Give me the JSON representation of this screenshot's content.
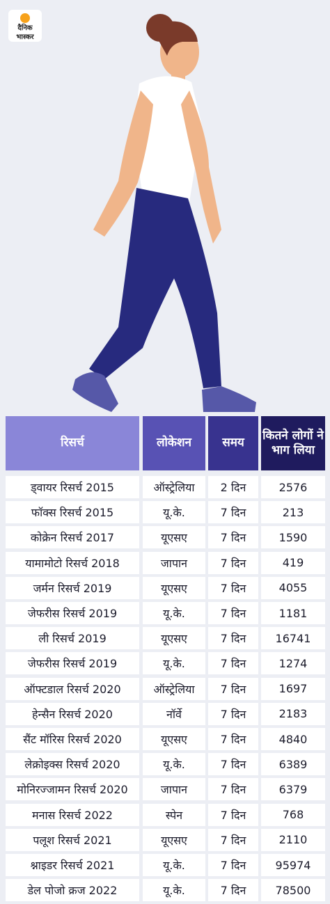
{
  "logo": {
    "line1": "दैनिक",
    "line2": "भास्कर"
  },
  "table": {
    "headers": [
      "रिसर्च",
      "लोकेशन",
      "समय",
      "कितने लोगों ने भाग लिया"
    ],
    "rows": [
      [
        "ड्वायर रिसर्च 2015",
        "ऑस्ट्रेलिया",
        "2 दिन",
        "2576"
      ],
      [
        "फॉक्स रिसर्च  2015",
        "यू.के.",
        "7 दिन",
        "213"
      ],
      [
        "कोक्रेन रिसर्च  2017",
        "यूएसए",
        "7 दिन",
        "1590"
      ],
      [
        "यामामोटो रिसर्च  2018",
        "जापान",
        "7 दिन",
        "419"
      ],
      [
        "जर्मन रिसर्च  2019",
        "यूएसए",
        "7 दिन",
        "4055"
      ],
      [
        "जेफरीस रिसर्च  2019",
        "यू.के.",
        "7 दिन",
        "1181"
      ],
      [
        "ली रिसर्च  2019",
        "यूएसए",
        "7 दिन",
        "16741"
      ],
      [
        "जेफरीस रिसर्च  2019",
        "यू.के.",
        "7 दिन",
        "1274"
      ],
      [
        "ऑफ्टडाल रिसर्च  2020",
        "ऑस्ट्रेलिया",
        "7 दिन",
        "1697"
      ],
      [
        "हेन्सैन रिसर्च 2020",
        "नॉर्वे",
        "7 दिन",
        "2183"
      ],
      [
        "सैंट मॉरिस रिसर्च 2020",
        "यूएसए",
        "7 दिन",
        "4840"
      ],
      [
        "लेक्रोइक्स रिसर्च 2020",
        "यू.के.",
        "7 दिन",
        "6389"
      ],
      [
        "मोनिरज्जामन रिसर्च 2020",
        "जापान",
        "7 दिन",
        "6379"
      ],
      [
        "मनास रिसर्च 2022",
        "स्पेन",
        "7 दिन",
        "768"
      ],
      [
        "पलूश रिसर्च 2021",
        "यूएसए",
        "7 दिन",
        "2110"
      ],
      [
        "श्नाइडर रिसर्च 2021",
        "यू.के.",
        "7 दिन",
        "95974"
      ],
      [
        "डेल पोजो क्रज 2022",
        "यू.के.",
        "7 दिन",
        "78500"
      ]
    ]
  }
}
